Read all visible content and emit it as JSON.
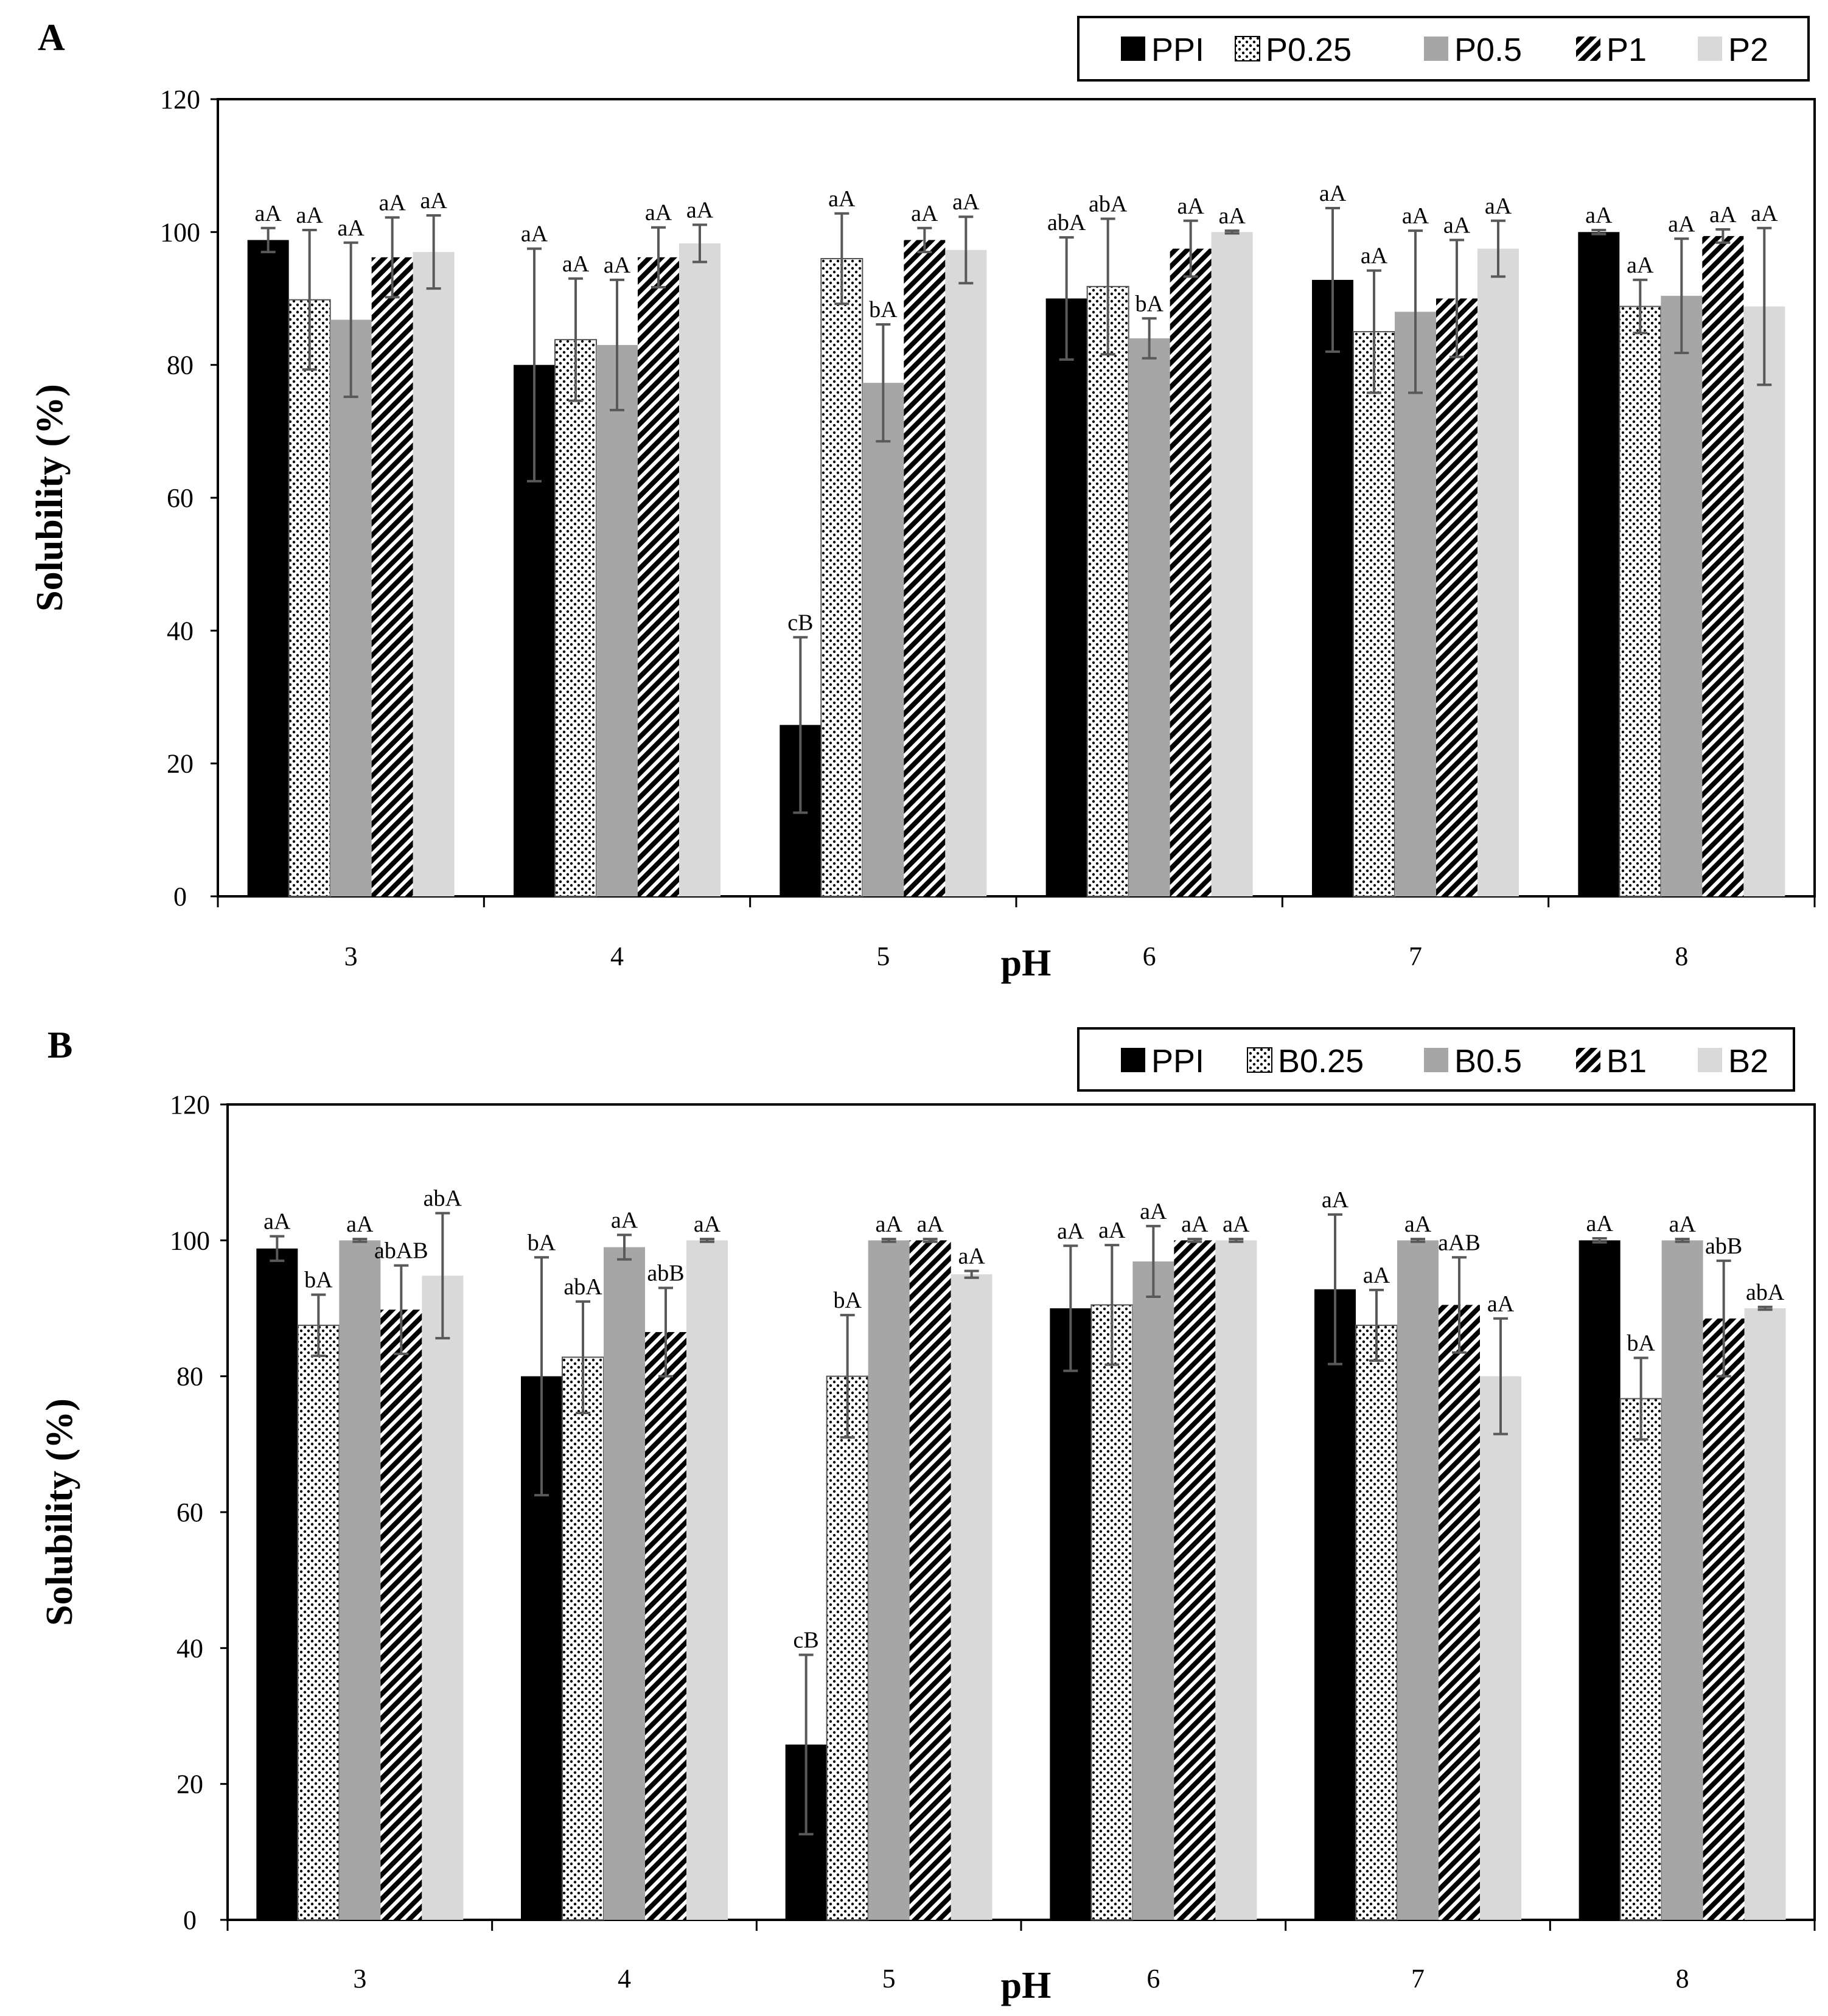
{
  "colors": {
    "PPI": "#000000",
    "light": "#d9d9d9",
    "mid": "#a6a6a6",
    "error": "#595959"
  },
  "chart_data": [
    {
      "panel": "A",
      "type": "bar",
      "title": "",
      "xlabel": "pH",
      "ylabel": "Solubility (%)",
      "ylim": [
        0,
        120
      ],
      "yticks": [
        "0",
        "20",
        "40",
        "60",
        "80",
        "100",
        "120"
      ],
      "categories": [
        "3",
        "4",
        "5",
        "6",
        "7",
        "8"
      ],
      "legend_position": "top-right",
      "series": [
        {
          "name": "PPI",
          "style": "solid-black",
          "values": [
            98.8,
            80.0,
            25.8,
            90.0,
            92.8,
            100.0
          ],
          "errors": [
            1.8,
            17.5,
            13.2,
            9.2,
            10.8,
            0.3
          ],
          "labels": [
            "aA",
            "aA",
            "cB",
            "abA",
            "aA",
            "aA"
          ]
        },
        {
          "name": "P0.25",
          "style": "dotted",
          "values": [
            89.8,
            83.8,
            96.0,
            91.8,
            85.0,
            88.8
          ],
          "errors": [
            10.5,
            9.2,
            6.8,
            10.2,
            9.2,
            4.0
          ],
          "labels": [
            "aA",
            "aA",
            "aA",
            "abA",
            "aA",
            "aA"
          ]
        },
        {
          "name": "P0.5",
          "style": "grey",
          "values": [
            86.8,
            83.0,
            77.3,
            84.0,
            88.0,
            90.4
          ],
          "errors": [
            11.6,
            9.8,
            8.8,
            3.0,
            12.2,
            8.6
          ],
          "labels": [
            "aA",
            "aA",
            "bA",
            "bA",
            "aA",
            "aA"
          ]
        },
        {
          "name": "P1",
          "style": "diagonal-hatch",
          "values": [
            96.2,
            96.2,
            98.8,
            97.5,
            90.0,
            99.4
          ],
          "errors": [
            6.0,
            4.5,
            1.8,
            4.2,
            8.8,
            1.0
          ],
          "labels": [
            "aA",
            "aA",
            "aA",
            "aA",
            "aA",
            "aA"
          ]
        },
        {
          "name": "P2",
          "style": "light-grey",
          "values": [
            97.0,
            98.3,
            97.3,
            100.0,
            97.5,
            88.8
          ],
          "errors": [
            5.5,
            2.8,
            5.0,
            0.2,
            4.2,
            11.8
          ],
          "labels": [
            "aA",
            "aA",
            "aA",
            "aA",
            "aA",
            "aA"
          ]
        }
      ]
    },
    {
      "panel": "B",
      "type": "bar",
      "title": "",
      "xlabel": "pH",
      "ylabel": "Solubility (%)",
      "ylim": [
        0,
        120
      ],
      "yticks": [
        "0",
        "20",
        "40",
        "60",
        "80",
        "100",
        "120"
      ],
      "categories": [
        "3",
        "4",
        "5",
        "6",
        "7",
        "8"
      ],
      "legend_position": "top-right",
      "series": [
        {
          "name": "PPI",
          "style": "solid-black",
          "values": [
            98.8,
            80.0,
            25.8,
            90.0,
            92.8,
            100.0
          ],
          "errors": [
            1.8,
            17.5,
            13.2,
            9.2,
            11.0,
            0.3
          ],
          "labels": [
            "aA",
            "bA",
            "cB",
            "aA",
            "aA",
            "aA"
          ]
        },
        {
          "name": "B0.25",
          "style": "dotted",
          "values": [
            87.5,
            82.8,
            80.0,
            90.5,
            87.5,
            76.7
          ],
          "errors": [
            4.5,
            8.2,
            9.0,
            8.8,
            5.2,
            6.0
          ],
          "labels": [
            "bA",
            "abA",
            "bA",
            "aA",
            "aA",
            "bA"
          ]
        },
        {
          "name": "B0.5",
          "style": "grey",
          "values": [
            100.0,
            99.0,
            100.0,
            96.9,
            100.0,
            100.0
          ],
          "errors": [
            0.2,
            1.8,
            0.2,
            5.2,
            0.2,
            0.2
          ],
          "labels": [
            "aA",
            "aA",
            "aA",
            "aA",
            "aA",
            "aA"
          ]
        },
        {
          "name": "B1",
          "style": "diagonal-hatch",
          "values": [
            89.8,
            86.5,
            100.0,
            100.0,
            90.5,
            88.5
          ],
          "errors": [
            6.5,
            6.5,
            0.2,
            0.2,
            7.0,
            8.5
          ],
          "labels": [
            "abAB",
            "abB",
            "aA",
            "aA",
            "aAB",
            "abB"
          ]
        },
        {
          "name": "B2",
          "style": "light-grey",
          "values": [
            94.8,
            100.0,
            95.0,
            100.0,
            80.0,
            90.0
          ],
          "errors": [
            9.2,
            0.2,
            0.5,
            0.2,
            8.5,
            0.2
          ],
          "labels": [
            "abA",
            "aA",
            "aA",
            "aA",
            "aA",
            "abA"
          ]
        }
      ]
    }
  ]
}
